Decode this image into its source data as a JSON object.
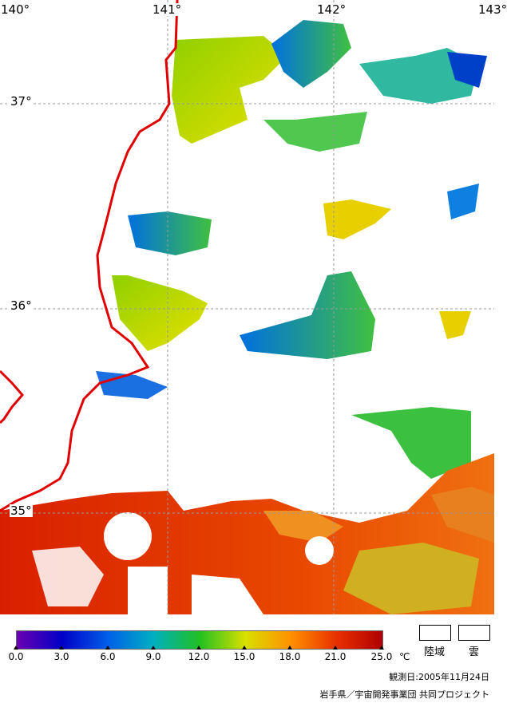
{
  "map": {
    "longitude_labels": [
      "140°",
      "141°",
      "142°",
      "143°"
    ],
    "latitude_labels": [
      "37°",
      "36°",
      "35°"
    ]
  },
  "legend": {
    "ticks": [
      "0.0",
      "3.0",
      "6.0",
      "9.0",
      "12.0",
      "15.0",
      "18.0",
      "21.0",
      "25.0"
    ],
    "unit": "℃",
    "colors": [
      "#6a00b0",
      "#0000c8",
      "#0060e8",
      "#00b0c0",
      "#20c020",
      "#d8e000",
      "#ff9000",
      "#e83000",
      "#b00000"
    ]
  },
  "key": {
    "land_label": "陸域",
    "cloud_label": "雲"
  },
  "footer": {
    "observation_date": "観測日:2005年11月24日",
    "credit": "岩手県／宇宙開発事業団 共同プロジェクト"
  },
  "colors": {
    "coastline": "#e00000",
    "grid": "#999999"
  }
}
